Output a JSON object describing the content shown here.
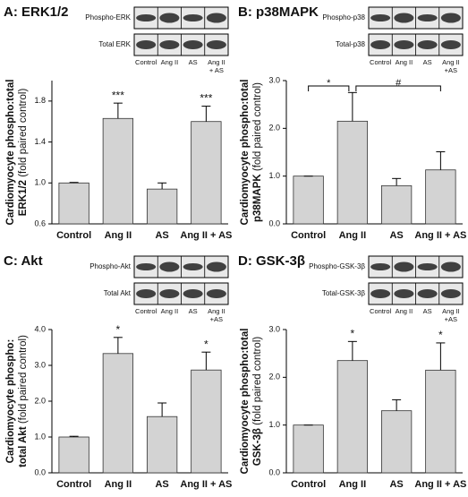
{
  "chart_data": [
    {
      "type": "bar",
      "title": "A: ERK1/2",
      "y_label": [
        "Cardiomyocyte phospho:total",
        "ERK1/2"
      ],
      "y_label_note": "(fold paired control)",
      "blot": {
        "rows": [
          "Phospho-ERK",
          "Total ERK"
        ],
        "lanes": [
          "Control",
          "Ang II",
          "AS",
          [
            "Ang II",
            "+ AS"
          ]
        ]
      },
      "categories": [
        "Control",
        "Ang II",
        "AS",
        "Ang II + AS"
      ],
      "values": [
        1.0,
        1.63,
        0.94,
        1.6
      ],
      "errors": [
        0.005,
        0.15,
        0.06,
        0.15
      ],
      "significance": [
        null,
        "***",
        null,
        "***"
      ],
      "ylim": [
        0.6,
        2.0
      ],
      "yticks": [
        0.6,
        {
          "value": 1.0,
          "label": "1.0"
        },
        1.4,
        1.8
      ],
      "color": "#d3d3d3"
    },
    {
      "type": "bar",
      "title": "B: p38MAPK",
      "y_label": [
        "Cardiomyocyte phospho:total",
        "p38MAPK"
      ],
      "y_label_note": "(fold paired control)",
      "blot": {
        "rows": [
          "Phospho-p38",
          "Total-p38"
        ],
        "lanes": [
          "Control",
          "Ang II",
          "AS",
          [
            "Ang II",
            "+AS"
          ]
        ]
      },
      "categories": [
        "Control",
        "Ang II",
        "AS",
        "Ang II + AS"
      ],
      "values": [
        1.0,
        2.15,
        0.8,
        1.13
      ],
      "errors": [
        0.0,
        0.6,
        0.15,
        0.38
      ],
      "brackets": [
        {
          "text": "*",
          "span": [
            "Control",
            "Ang II"
          ]
        },
        {
          "text": "#",
          "span": [
            "Ang II",
            "Ang II + AS"
          ]
        }
      ],
      "ylim": [
        0,
        3
      ],
      "yticks": [
        {
          "value": 0,
          "label": "0.0"
        },
        {
          "value": 1,
          "label": "1.0"
        },
        {
          "value": 2,
          "label": "2.0"
        },
        {
          "value": 3,
          "label": "3.0"
        }
      ],
      "color": "#d3d3d3"
    },
    {
      "type": "bar",
      "title": "C: Akt",
      "y_label": [
        "Cardiomyocyte phospho:",
        "total Akt"
      ],
      "y_label_note": "(fold paired control)",
      "blot": {
        "rows": [
          "Phospho-Akt",
          "Total Akt"
        ],
        "lanes": [
          "Control",
          "Ang II",
          "AS",
          [
            "Ang II",
            "+AS"
          ]
        ]
      },
      "categories": [
        "Control",
        "Ang II",
        "AS",
        "Ang II + AS"
      ],
      "values": [
        1.0,
        3.33,
        1.57,
        2.87
      ],
      "errors": [
        0.02,
        0.45,
        0.38,
        0.5
      ],
      "significance": [
        null,
        "*",
        null,
        "*"
      ],
      "ylim": [
        0,
        4
      ],
      "yticks": [
        {
          "value": 0,
          "label": "0.0"
        },
        {
          "value": 1,
          "label": "1.0"
        },
        {
          "value": 2,
          "label": "2.0"
        },
        {
          "value": 3,
          "label": "3.0"
        },
        {
          "value": 4,
          "label": "4.0"
        }
      ],
      "color": "#d3d3d3"
    },
    {
      "type": "bar",
      "title": "D: GSK-3β",
      "y_label": [
        "Cardiomyocyte phospho:total",
        "GSK-3β"
      ],
      "y_label_note": "(fold paired control)",
      "blot": {
        "rows": [
          "Phospho-GSK-3β",
          "Total-GSK-3β"
        ],
        "lanes": [
          "Control",
          "Ang II",
          "AS",
          [
            "Ang II",
            "+AS"
          ]
        ]
      },
      "categories": [
        "Control",
        "Ang II",
        "AS",
        "Ang II + AS"
      ],
      "values": [
        1.0,
        2.35,
        1.3,
        2.15
      ],
      "errors": [
        0.0,
        0.4,
        0.23,
        0.57
      ],
      "significance": [
        null,
        "*",
        null,
        "*"
      ],
      "ylim": [
        0,
        3
      ],
      "yticks": [
        {
          "value": 0,
          "label": "0.0"
        },
        {
          "value": 1,
          "label": "1.0"
        },
        {
          "value": 2,
          "label": "2.0"
        },
        {
          "value": 3,
          "label": "3.0"
        }
      ],
      "color": "#d3d3d3"
    }
  ]
}
